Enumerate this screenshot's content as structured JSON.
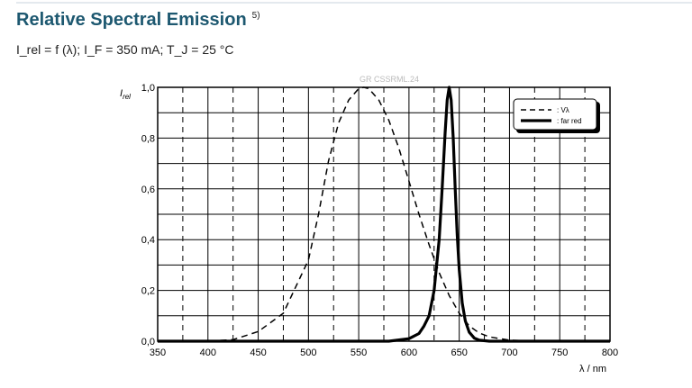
{
  "title": "Relative Spectral Emission",
  "title_note": "5)",
  "subtitle": "I_rel = f (λ); I_F = 350 mA; T_J = 25 °C",
  "chart_data": {
    "type": "line",
    "watermark": "GR CSSRML.24",
    "ylabel": "I_rel",
    "xlabel": "λ / nm",
    "xlim": [
      350,
      800
    ],
    "ylim": [
      0,
      1
    ],
    "xticks": [
      350,
      400,
      450,
      500,
      550,
      600,
      650,
      700,
      750,
      800
    ],
    "yticks": [
      "0,0",
      "0,2",
      "0,4",
      "0,6",
      "0,8",
      "1,0"
    ],
    "grid": true,
    "legend_position": "top-right",
    "series": [
      {
        "name": ": Vλ",
        "style": "dashed",
        "x": [
          380,
          400,
          425,
          450,
          475,
          500,
          510,
          520,
          530,
          540,
          550,
          555,
          560,
          570,
          580,
          590,
          600,
          610,
          620,
          630,
          640,
          650,
          660,
          670,
          680,
          700,
          720,
          800
        ],
        "values": [
          0,
          0.0004,
          0.006,
          0.038,
          0.11,
          0.32,
          0.5,
          0.71,
          0.86,
          0.95,
          0.995,
          1,
          0.995,
          0.95,
          0.87,
          0.76,
          0.63,
          0.5,
          0.38,
          0.27,
          0.18,
          0.11,
          0.06,
          0.032,
          0.017,
          0.004,
          0.001,
          0
        ]
      },
      {
        "name": ": far red",
        "style": "solid",
        "x": [
          350,
          580,
          600,
          610,
          615,
          620,
          625,
          630,
          633,
          636,
          638,
          640,
          642,
          644,
          646,
          648,
          650,
          653,
          656,
          660,
          665,
          670,
          680,
          800
        ],
        "values": [
          0,
          0,
          0.01,
          0.03,
          0.06,
          0.1,
          0.2,
          0.4,
          0.6,
          0.82,
          0.95,
          1,
          0.95,
          0.8,
          0.6,
          0.42,
          0.28,
          0.15,
          0.08,
          0.035,
          0.012,
          0.004,
          0,
          0
        ]
      }
    ]
  }
}
